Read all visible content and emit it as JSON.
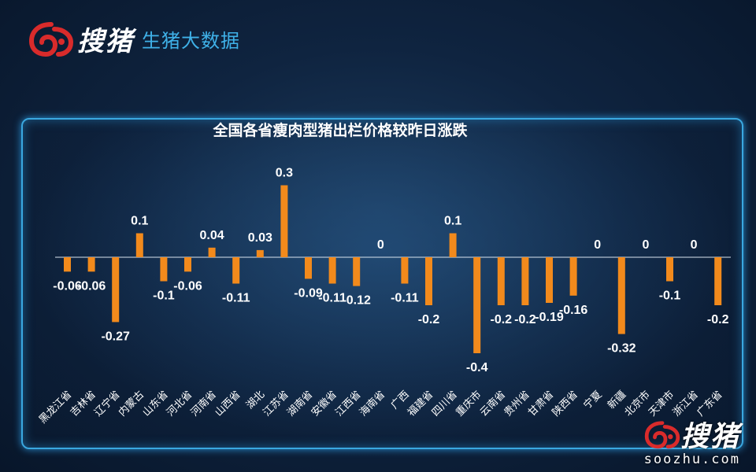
{
  "header": {
    "brand_name": "搜猪",
    "subtitle": "生猪大数据"
  },
  "watermark": {
    "brand_name": "搜猪",
    "url": "soozhu.com"
  },
  "colors": {
    "bar": "#f28a1c",
    "brand_red": "#d92b2b",
    "subtitle_blue": "#3fb1e8"
  },
  "chart_data": {
    "type": "bar",
    "title": "全国各省瘦肉型猪出栏价格较昨日涨跌",
    "xlabel": "",
    "ylabel": "",
    "ylim": [
      -0.4,
      0.3
    ],
    "grid": false,
    "legend": "none",
    "categories": [
      "黑龙江省",
      "吉林省",
      "辽宁省",
      "内蒙古",
      "山东省",
      "河北省",
      "河南省",
      "山西省",
      "湖北",
      "江苏省",
      "湖南省",
      "安徽省",
      "江西省",
      "海南省",
      "广西",
      "福建省",
      "四川省",
      "重庆市",
      "云南省",
      "贵州省",
      "甘肃省",
      "陕西省",
      "宁夏",
      "新疆",
      "北京市",
      "天津市",
      "浙江省",
      "广东省"
    ],
    "values": [
      -0.06,
      -0.06,
      -0.27,
      0.1,
      -0.1,
      -0.06,
      0.04,
      -0.11,
      0.03,
      0.3,
      -0.09,
      -0.11,
      -0.12,
      0,
      -0.11,
      -0.2,
      0.1,
      -0.4,
      -0.2,
      -0.2,
      -0.19,
      -0.16,
      0,
      -0.32,
      0,
      -0.1,
      0,
      -0.2
    ]
  }
}
